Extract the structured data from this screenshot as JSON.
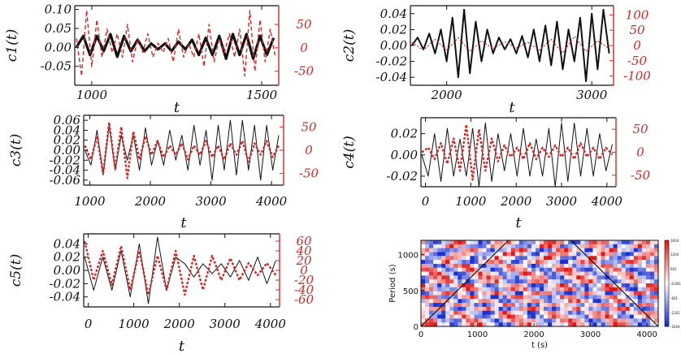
{
  "chart_data": [
    {
      "type": "line",
      "ylabel": "c1(t)",
      "xlabel": "t",
      "xlim": [
        950,
        1550
      ],
      "ylim": [
        -0.1,
        0.11
      ],
      "ylim_right": [
        -80,
        90
      ],
      "x_ticks": [
        "1000",
        "1500"
      ],
      "x_tick_values": [
        1000,
        1500
      ],
      "y_ticks": [
        "0.10",
        "0.05",
        "0.00",
        "-0.05"
      ],
      "y_tick_values": [
        0.1,
        0.05,
        0.0,
        -0.05
      ],
      "y2_ticks": [
        "50",
        "0",
        "-50"
      ],
      "y2_tick_values": [
        50,
        0,
        -50
      ],
      "series": [
        {
          "axis": "left",
          "color": "#111111",
          "style": "thick",
          "x": [
            955,
            975,
            995,
            1015,
            1035,
            1055,
            1075,
            1095,
            1115,
            1135,
            1155,
            1175,
            1195,
            1215,
            1235,
            1255,
            1275,
            1295,
            1315,
            1335,
            1355,
            1375,
            1395,
            1415,
            1435,
            1455,
            1475,
            1495,
            1515,
            1535
          ],
          "values": [
            0.0,
            0.03,
            -0.02,
            0.03,
            -0.01,
            0.035,
            -0.025,
            0.03,
            -0.01,
            0.02,
            -0.01,
            0.01,
            -0.005,
            0.01,
            -0.01,
            0.015,
            -0.005,
            0.02,
            -0.02,
            0.025,
            -0.02,
            0.03,
            -0.03,
            0.035,
            -0.02,
            0.035,
            -0.03,
            0.03,
            -0.02,
            0.025
          ]
        },
        {
          "axis": "right",
          "color": "#d62728",
          "style": "dashed",
          "x": [
            955,
            970,
            985,
            1000,
            1015,
            1030,
            1045,
            1060,
            1075,
            1090,
            1105,
            1120,
            1135,
            1150,
            1165,
            1180,
            1195,
            1210,
            1225,
            1240,
            1255,
            1270,
            1285,
            1300,
            1315,
            1330,
            1345,
            1360,
            1375,
            1390,
            1405,
            1420,
            1435,
            1450,
            1465,
            1480,
            1495,
            1510,
            1525,
            1540
          ],
          "values": [
            20,
            -60,
            80,
            -40,
            60,
            -20,
            40,
            -10,
            30,
            -20,
            50,
            -30,
            20,
            -10,
            30,
            -20,
            10,
            -10,
            20,
            -30,
            40,
            -20,
            10,
            -20,
            30,
            -40,
            50,
            -30,
            20,
            -10,
            30,
            -20,
            40,
            -60,
            80,
            -50,
            60,
            -30,
            40,
            -20
          ]
        }
      ]
    },
    {
      "type": "line",
      "ylabel": "c2(t)",
      "xlabel": "t",
      "xlim": [
        1750,
        3150
      ],
      "ylim": [
        -0.05,
        0.05
      ],
      "ylim_right": [
        -130,
        130
      ],
      "x_ticks": [
        "2000",
        "3000"
      ],
      "x_tick_values": [
        2000,
        3000
      ],
      "y_ticks": [
        "0.04",
        "0.02",
        "0.00",
        "-0.02",
        "-0.04"
      ],
      "y_tick_values": [
        0.04,
        0.02,
        0.0,
        -0.02,
        -0.04
      ],
      "y2_ticks": [
        "100",
        "50",
        "0",
        "-50",
        "-100"
      ],
      "y2_tick_values": [
        100,
        50,
        0,
        -50,
        -100
      ],
      "series": [
        {
          "axis": "left",
          "color": "#111111",
          "style": "solid",
          "x": [
            1760,
            1800,
            1840,
            1880,
            1920,
            1960,
            2000,
            2040,
            2080,
            2120,
            2160,
            2200,
            2240,
            2280,
            2320,
            2360,
            2400,
            2440,
            2480,
            2520,
            2560,
            2600,
            2640,
            2680,
            2720,
            2760,
            2800,
            2840,
            2880,
            2920,
            2960,
            3000,
            3040,
            3080,
            3120
          ],
          "values": [
            0.0,
            0.01,
            -0.005,
            0.015,
            -0.01,
            0.02,
            -0.02,
            0.035,
            -0.04,
            0.045,
            -0.035,
            0.03,
            -0.02,
            0.02,
            -0.01,
            0.01,
            -0.005,
            0.008,
            -0.01,
            0.012,
            -0.015,
            0.02,
            -0.02,
            0.025,
            -0.025,
            0.03,
            -0.03,
            0.02,
            -0.02,
            0.035,
            -0.045,
            0.04,
            -0.03,
            0.045,
            -0.01
          ]
        },
        {
          "axis": "right",
          "color": "#d62728",
          "style": "dotted",
          "x": [
            1760,
            1840,
            1920,
            2000,
            2080,
            2160,
            2240,
            2320,
            2400,
            2480,
            2560,
            2640,
            2720,
            2800,
            2880,
            2960,
            3040,
            3120
          ],
          "values": [
            10,
            -15,
            20,
            -15,
            25,
            -20,
            15,
            -10,
            12,
            -8,
            10,
            -15,
            20,
            -25,
            30,
            -20,
            15,
            -10
          ]
        }
      ]
    },
    {
      "type": "line",
      "ylabel": "c3(t)",
      "xlabel": "t",
      "xlim": [
        900,
        4200
      ],
      "ylim": [
        -0.07,
        0.07
      ],
      "ylim_right": [
        -75,
        75
      ],
      "x_ticks": [
        "1000",
        "2000",
        "3000",
        "4000"
      ],
      "x_tick_values": [
        1000,
        2000,
        3000,
        4000
      ],
      "y_ticks": [
        "0.06",
        "0.04",
        "0.02",
        "0.00",
        "-0.02",
        "-0.04",
        "-0.06"
      ],
      "y_tick_values": [
        0.06,
        0.04,
        0.02,
        0.0,
        -0.02,
        -0.04,
        -0.06
      ],
      "y2_ticks": [
        "50",
        "0",
        "-50"
      ],
      "y2_tick_values": [
        50,
        0,
        -50
      ],
      "series": [
        {
          "axis": "left",
          "color": "#111111",
          "style": "thin",
          "x": [
            920,
            1020,
            1120,
            1220,
            1320,
            1420,
            1520,
            1620,
            1720,
            1820,
            1920,
            2020,
            2120,
            2220,
            2320,
            2420,
            2520,
            2620,
            2720,
            2820,
            2920,
            3020,
            3120,
            3220,
            3320,
            3420,
            3520,
            3620,
            3720,
            3820,
            3920,
            4020,
            4120
          ],
          "values": [
            0.0,
            -0.03,
            0.04,
            -0.05,
            0.05,
            -0.04,
            0.03,
            -0.02,
            0.03,
            -0.04,
            0.045,
            -0.03,
            0.02,
            -0.03,
            0.04,
            -0.02,
            0.03,
            -0.04,
            0.05,
            -0.03,
            0.04,
            -0.06,
            0.05,
            -0.04,
            0.06,
            -0.05,
            0.06,
            -0.04,
            0.05,
            -0.06,
            0.05,
            -0.04,
            0.03
          ]
        },
        {
          "axis": "right",
          "color": "#d62728",
          "style": "dotted-thick",
          "x": [
            920,
            1020,
            1120,
            1220,
            1320,
            1420,
            1520,
            1620,
            1720,
            1820,
            1920,
            2020,
            2120,
            2220,
            2320,
            2420,
            2520,
            2620,
            2720,
            2820,
            2920,
            3020,
            3120,
            3220,
            3320,
            3420,
            3520,
            3620,
            3720,
            3820,
            3920,
            4020,
            4120
          ],
          "values": [
            10,
            -20,
            30,
            -50,
            60,
            -40,
            50,
            -60,
            40,
            -20,
            30,
            -10,
            20,
            -15,
            10,
            -10,
            15,
            -20,
            10,
            -10,
            20,
            -15,
            10,
            -20,
            15,
            -10,
            20,
            -25,
            15,
            -10,
            20,
            -15,
            10
          ]
        }
      ]
    },
    {
      "type": "line",
      "ylabel": "c4(t)",
      "xlabel": "t",
      "xlim": [
        -100,
        4200
      ],
      "ylim": [
        -0.03,
        0.035
      ],
      "ylim_right": [
        -75,
        75
      ],
      "x_ticks": [
        "0",
        "1000",
        "2000",
        "3000",
        "4000"
      ],
      "x_tick_values": [
        0,
        1000,
        2000,
        3000,
        4000
      ],
      "y_ticks": [
        "0.02",
        "0.00",
        "-0.02"
      ],
      "y_tick_values": [
        0.02,
        0.0,
        -0.02
      ],
      "y2_ticks": [
        "50",
        "0",
        "-50"
      ],
      "y2_tick_values": [
        50,
        0,
        -50
      ],
      "series": [
        {
          "axis": "left",
          "color": "#111111",
          "style": "thin",
          "x": [
            -80,
            60,
            200,
            340,
            480,
            620,
            760,
            900,
            1040,
            1180,
            1320,
            1460,
            1600,
            1740,
            1880,
            2020,
            2160,
            2300,
            2440,
            2580,
            2720,
            2860,
            3000,
            3140,
            3280,
            3420,
            3560,
            3700,
            3840,
            3980,
            4120
          ],
          "values": [
            0.0,
            -0.02,
            0.02,
            -0.025,
            0.025,
            -0.02,
            0.015,
            -0.02,
            0.025,
            -0.03,
            0.03,
            -0.025,
            0.02,
            -0.015,
            0.02,
            -0.02,
            0.025,
            -0.02,
            0.015,
            -0.02,
            0.025,
            -0.03,
            0.03,
            -0.025,
            0.03,
            -0.02,
            0.025,
            -0.02,
            0.02,
            -0.015,
            0.01
          ]
        },
        {
          "axis": "right",
          "color": "#d62728",
          "style": "dotted-thick",
          "x": [
            -80,
            60,
            200,
            340,
            480,
            620,
            760,
            900,
            1040,
            1180,
            1320,
            1460,
            1600,
            1740,
            1880,
            2020,
            2160,
            2300,
            2440,
            2580,
            2720,
            2860,
            3000,
            3140,
            3280,
            3420,
            3560,
            3700,
            3840,
            3980,
            4120
          ],
          "values": [
            0,
            10,
            -15,
            20,
            -25,
            30,
            -40,
            60,
            -60,
            50,
            -40,
            30,
            -20,
            15,
            -10,
            10,
            -15,
            20,
            -15,
            10,
            -10,
            15,
            -10,
            10,
            -15,
            20,
            -10,
            10,
            -15,
            10,
            -5
          ]
        }
      ]
    },
    {
      "type": "line",
      "ylabel": "c5(t)",
      "xlabel": "t",
      "xlim": [
        -100,
        4200
      ],
      "ylim": [
        -0.055,
        0.055
      ],
      "ylim_right": [
        -75,
        75
      ],
      "x_ticks": [
        "0",
        "1000",
        "2000",
        "3000",
        "4000"
      ],
      "x_tick_values": [
        0,
        1000,
        2000,
        3000,
        4000
      ],
      "y_ticks": [
        "0.04",
        "0.02",
        "0.00",
        "-0.02",
        "-0.04"
      ],
      "y_tick_values": [
        0.04,
        0.02,
        0.0,
        -0.02,
        -0.04
      ],
      "y2_ticks": [
        "60",
        "40",
        "20",
        "0",
        "-20",
        "-40",
        "-60"
      ],
      "y2_tick_values": [
        60,
        40,
        20,
        0,
        -20,
        -40,
        -60
      ],
      "series": [
        {
          "axis": "left",
          "color": "#111111",
          "style": "thin",
          "x": [
            -80,
            120,
            320,
            520,
            720,
            920,
            1120,
            1320,
            1520,
            1720,
            1920,
            2120,
            2320,
            2520,
            2720,
            2920,
            3120,
            3320,
            3520,
            3720,
            3920,
            4120
          ],
          "values": [
            0.02,
            -0.03,
            0.02,
            -0.03,
            0.03,
            -0.04,
            0.04,
            -0.05,
            0.05,
            -0.03,
            0.02,
            0.01,
            -0.01,
            0.01,
            -0.005,
            0.01,
            -0.01,
            0.015,
            -0.015,
            0.02,
            -0.02,
            0.015
          ]
        },
        {
          "axis": "right",
          "color": "#d62728",
          "style": "dotted-thick",
          "x": [
            -80,
            120,
            320,
            520,
            720,
            920,
            1120,
            1320,
            1520,
            1720,
            1920,
            2120,
            2320,
            2520,
            2720,
            2920,
            3120,
            3320,
            3520,
            3720,
            3920,
            4120
          ],
          "values": [
            60,
            -20,
            40,
            -30,
            50,
            -40,
            40,
            -50,
            30,
            -40,
            40,
            -50,
            30,
            -40,
            30,
            -20,
            25,
            -20,
            15,
            -10,
            15,
            -10
          ]
        }
      ]
    },
    {
      "type": "heatmap",
      "ylabel": "Period (s)",
      "xlabel": "t (s)",
      "xlim": [
        0,
        4200
      ],
      "ylim": [
        0,
        1200
      ],
      "x_ticks": [
        "0",
        "1000",
        "2000",
        "3000",
        "4000"
      ],
      "x_tick_values": [
        0,
        1000,
        2000,
        3000,
        4000
      ],
      "y_ticks": [
        "1000",
        "500",
        "0"
      ],
      "y_tick_values": [
        1000,
        500,
        0
      ],
      "colorbar_ticks": [
        "1E04",
        "1204",
        "601",
        "-0.001",
        "-601",
        "-1201",
        "-1E04"
      ],
      "colorbar_tick_values": [
        1,
        0.68,
        0.34,
        0,
        -0.34,
        -0.68,
        -1
      ],
      "colors": {
        "positive": "#e01818",
        "neutral": "#ffffff",
        "negative": "#1a2fd0"
      },
      "cone_lines": [
        {
          "x": [
            0,
            1550
          ],
          "y": [
            0,
            1200
          ]
        },
        {
          "x": [
            2650,
            4200
          ],
          "y": [
            1200,
            0
          ]
        }
      ]
    }
  ]
}
